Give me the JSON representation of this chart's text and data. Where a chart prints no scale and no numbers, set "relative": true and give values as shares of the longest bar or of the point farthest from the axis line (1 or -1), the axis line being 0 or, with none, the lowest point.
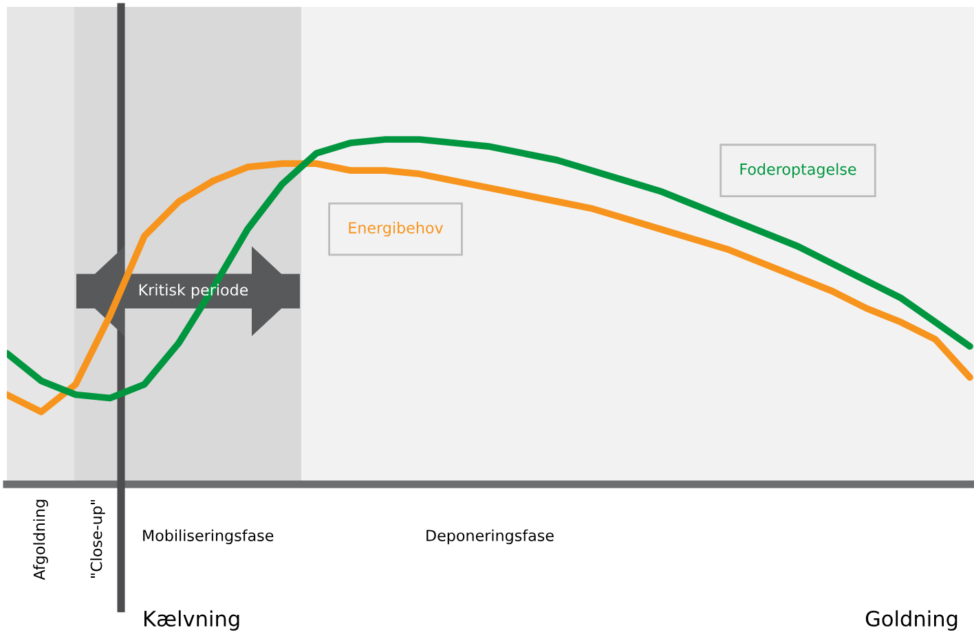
{
  "chart_data": {
    "type": "line",
    "relative": true,
    "categories": [
      null,
      null,
      null,
      null,
      null,
      null,
      null,
      null,
      null,
      null,
      null,
      null,
      null,
      null,
      null,
      null,
      null,
      null,
      null,
      null,
      null,
      null,
      null,
      null,
      null,
      null,
      null,
      null,
      null
    ],
    "series": [
      {
        "name": "Energibehov",
        "color": "#f7941d",
        "values": [
          0.26,
          0.21,
          0.29,
          0.49,
          0.72,
          0.82,
          0.88,
          0.92,
          0.93,
          0.93,
          0.91,
          0.91,
          0.9,
          0.88,
          0.86,
          0.84,
          0.82,
          0.8,
          0.77,
          0.74,
          0.71,
          0.68,
          0.64,
          0.6,
          0.56,
          0.51,
          0.47,
          0.42,
          0.31
        ]
      },
      {
        "name": "Foderoptagelse",
        "color": "#009640",
        "values": [
          0.38,
          0.3,
          0.26,
          0.25,
          0.29,
          0.41,
          0.57,
          0.74,
          0.87,
          0.96,
          0.99,
          1.0,
          1.0,
          0.99,
          0.98,
          0.96,
          0.94,
          0.91,
          0.88,
          0.85,
          0.81,
          0.77,
          0.73,
          0.69,
          0.64,
          0.59,
          0.54,
          0.47,
          0.4
        ]
      }
    ],
    "annotations": [
      "Afgoldning",
      "\"Close-up\"",
      "Mobiliseringsfase",
      "Deponeringsfase",
      "Kælvning",
      "Kritisk periode",
      "Goldning"
    ]
  }
}
